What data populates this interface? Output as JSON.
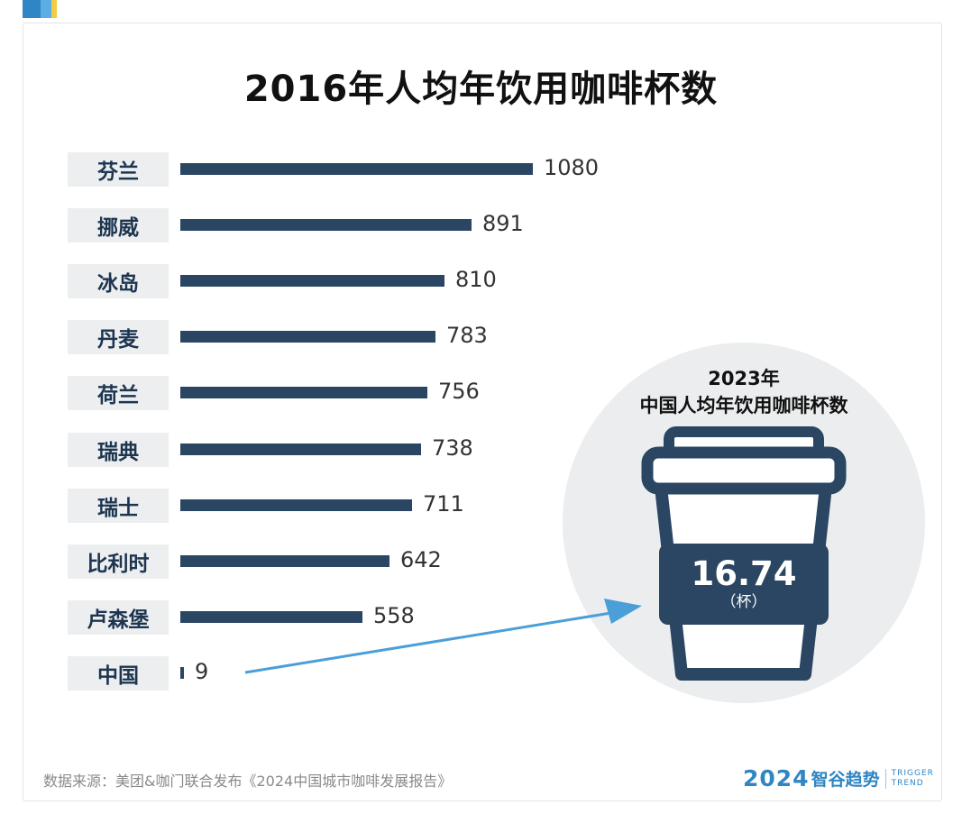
{
  "chart_data": {
    "type": "bar",
    "orientation": "horizontal",
    "title": "2016年人均年饮用咖啡杯数",
    "categories": [
      "芬兰",
      "挪威",
      "冰岛",
      "丹麦",
      "荷兰",
      "瑞典",
      "瑞士",
      "比利时",
      "卢森堡",
      "中国"
    ],
    "values": [
      1080,
      891,
      810,
      783,
      756,
      738,
      711,
      642,
      558,
      9
    ],
    "value_labels": [
      "1080",
      "891",
      "810",
      "783",
      "756",
      "738",
      "711",
      "642",
      "558",
      "9"
    ],
    "xlim": [
      0,
      1080
    ],
    "grid": false,
    "bar_color": "#2a4663"
  },
  "callout": {
    "year_label": "2023年",
    "caption": "中国人均年饮用咖啡杯数",
    "value": "16.74",
    "unit": "（杯）",
    "cup_color": "#2a4663",
    "arrow_color": "#4a9fd9"
  },
  "footer": {
    "source": "数据来源：美团&咖门联合发布《2024中国城市咖啡发展报告》",
    "brand_year": "2024",
    "brand_name": "智谷趋势",
    "brand_en_line1": "TRIGGER",
    "brand_en_line2": "TREND"
  },
  "colors": {
    "accent_blue": "#2f86c4",
    "accent_light": "#5aaee3",
    "accent_yellow": "#f2cd3f"
  }
}
